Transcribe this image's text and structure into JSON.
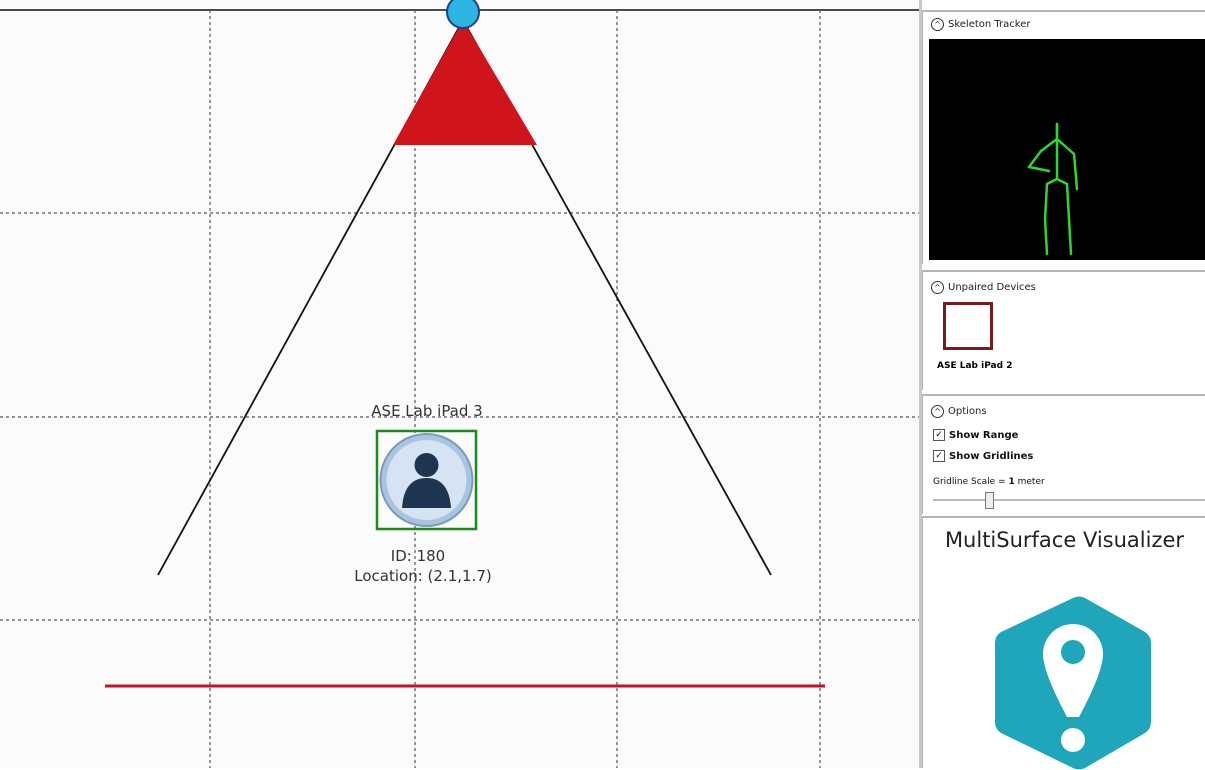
{
  "canvas": {
    "device": {
      "name": "ASE Lab iPad 3",
      "id": "ID: 180",
      "location": "Location: (2.1,1.7)"
    }
  },
  "sidebar": {
    "skeleton": {
      "title": "Skeleton Tracker"
    },
    "unpaired": {
      "title": "Unpaired Devices",
      "devices": [
        "ASE Lab iPad 2"
      ]
    },
    "options": {
      "title": "Options",
      "show_range": "Show Range",
      "show_gridlines": "Show Gridlines",
      "scale_label": "Gridline Scale =",
      "scale_value": "1",
      "scale_unit": "meter"
    },
    "app": {
      "title": "MultiSurface Visualizer"
    }
  }
}
